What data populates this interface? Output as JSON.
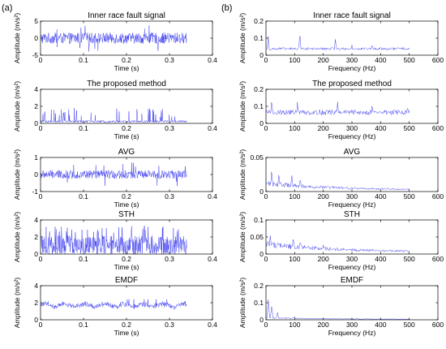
{
  "panel_labels": [
    "(a)",
    "(b)"
  ],
  "colors": {
    "series": "#3333ee",
    "axis": "#000000"
  },
  "chart_data": [
    {
      "type": "line",
      "panel": "a",
      "row": 0,
      "title": "Inner race fault signal",
      "xlabel": "Time (s)",
      "ylabel": "Amplitude (m/s²)",
      "xlim": [
        0,
        0.4
      ],
      "ylim": [
        -5,
        5
      ],
      "xticks": [
        "0",
        "0.1",
        "0.2",
        "0.3",
        "0.4"
      ],
      "yticks": [
        "-5",
        "0",
        "5"
      ],
      "xtick_values": [
        0,
        0.1,
        0.2,
        0.3,
        0.4
      ],
      "ytick_values": [
        -5,
        0,
        5
      ],
      "x_range": [
        0,
        0.34
      ],
      "signal": "bipolar",
      "baseline": 0,
      "spread": 1.6,
      "peak": 4.2,
      "spike_rate": 0.04
    },
    {
      "type": "line",
      "panel": "a",
      "row": 1,
      "title": "The proposed method",
      "xlabel": "Time (s)",
      "ylabel": "Amplitude (m/s²)",
      "xlim": [
        0,
        0.4
      ],
      "ylim": [
        0,
        4
      ],
      "xticks": [
        "0",
        "0.1",
        "0.2",
        "0.3",
        "0.4"
      ],
      "yticks": [
        "0",
        "2",
        "4"
      ],
      "xtick_values": [
        0,
        0.1,
        0.2,
        0.3,
        0.4
      ],
      "ytick_values": [
        0,
        2,
        4
      ],
      "x_range": [
        0,
        0.34
      ],
      "signal": "impulse",
      "baseline": 0.1,
      "spread": 0.25,
      "peak": 1.8,
      "spike_rate": 0.12
    },
    {
      "type": "line",
      "panel": "a",
      "row": 2,
      "title": "AVG",
      "xlabel": "Time (s)",
      "ylabel": "Amplitude (m/s²)",
      "xlim": [
        0,
        0.4
      ],
      "ylim": [
        -1,
        1
      ],
      "xticks": [
        "0",
        "0.1",
        "0.2",
        "0.3",
        "0.4"
      ],
      "yticks": [
        "-1",
        "0",
        "1"
      ],
      "xtick_values": [
        0,
        0.1,
        0.2,
        0.3,
        0.4
      ],
      "ytick_values": [
        -1,
        0,
        1
      ],
      "x_range": [
        0,
        0.34
      ],
      "signal": "bipolar",
      "baseline": 0,
      "spread": 0.25,
      "peak": 0.7,
      "spike_rate": 0.04
    },
    {
      "type": "line",
      "panel": "a",
      "row": 3,
      "title": "STH",
      "xlabel": "Time (s)",
      "ylabel": "Amplitude (m/s²)",
      "xlim": [
        0,
        0.4
      ],
      "ylim": [
        0,
        4
      ],
      "xticks": [
        "0",
        "0.1",
        "0.2",
        "0.3",
        "0.4"
      ],
      "yticks": [
        "0",
        "2",
        "4"
      ],
      "xtick_values": [
        0,
        0.1,
        0.2,
        0.3,
        0.4
      ],
      "ytick_values": [
        0,
        2,
        4
      ],
      "x_range": [
        0,
        0.34
      ],
      "signal": "dense",
      "baseline": 0.9,
      "spread": 0.9,
      "peak": 3.3,
      "spike_rate": 0.08
    },
    {
      "type": "line",
      "panel": "a",
      "row": 4,
      "title": "EMDF",
      "xlabel": "Time (s)",
      "ylabel": "Amplitude (m/s²)",
      "xlim": [
        0,
        0.4
      ],
      "ylim": [
        0,
        4
      ],
      "xticks": [
        "0",
        "0.1",
        "0.2",
        "0.3",
        "0.4"
      ],
      "yticks": [
        "0",
        "2",
        "4"
      ],
      "xtick_values": [
        0,
        0.1,
        0.2,
        0.3,
        0.4
      ],
      "ytick_values": [
        0,
        2,
        4
      ],
      "x_range": [
        0,
        0.34
      ],
      "signal": "smooth",
      "baseline": 1.7,
      "spread": 0.25,
      "peak": 2.4,
      "spike_rate": 0.02
    },
    {
      "type": "line",
      "panel": "b",
      "row": 0,
      "title": "Inner race fault signal",
      "xlabel": "Frequency (Hz)",
      "ylabel": "Amplitude (m/s²)",
      "xlim": [
        0,
        600
      ],
      "ylim": [
        0,
        0.2
      ],
      "xticks": [
        "0",
        "100",
        "200",
        "300",
        "400",
        "500",
        "600"
      ],
      "yticks": [
        "0",
        "0.1",
        "0.2"
      ],
      "xtick_values": [
        0,
        100,
        200,
        300,
        400,
        500,
        600
      ],
      "ytick_values": [
        0,
        0.1,
        0.2
      ],
      "x_range": [
        0,
        500
      ],
      "signal": "spectrum",
      "baseline": 0.03,
      "spread": 0.015,
      "peaks": [
        [
          8,
          0.12
        ],
        [
          118,
          0.15
        ],
        [
          242,
          0.11
        ],
        [
          300,
          0.06
        ],
        [
          370,
          0.07
        ],
        [
          480,
          0.04
        ]
      ]
    },
    {
      "type": "line",
      "panel": "b",
      "row": 1,
      "title": "The proposed method",
      "xlabel": "Frequency (Hz)",
      "ylabel": "Amplitude (m/s²)",
      "xlim": [
        0,
        600
      ],
      "ylim": [
        0,
        0.2
      ],
      "xticks": [
        "0",
        "100",
        "200",
        "300",
        "400",
        "500",
        "600"
      ],
      "yticks": [
        "0",
        "0.1",
        "0.2"
      ],
      "xtick_values": [
        0,
        100,
        200,
        300,
        400,
        500,
        600
      ],
      "ytick_values": [
        0,
        0.1,
        0.2
      ],
      "x_range": [
        0,
        500
      ],
      "signal": "spectrum",
      "baseline": 0.05,
      "spread": 0.03,
      "peaks": [
        [
          20,
          0.16
        ],
        [
          110,
          0.14
        ],
        [
          250,
          0.14
        ],
        [
          370,
          0.13
        ],
        [
          495,
          0.11
        ]
      ]
    },
    {
      "type": "line",
      "panel": "b",
      "row": 2,
      "title": "AVG",
      "xlabel": "Frequency (Hz)",
      "ylabel": "Amplitude (m/s²)",
      "xlim": [
        0,
        600
      ],
      "ylim": [
        0,
        0.05
      ],
      "xticks": [
        "0",
        "100",
        "200",
        "300",
        "400",
        "500",
        "600"
      ],
      "yticks": [
        "0",
        "0.05"
      ],
      "xtick_values": [
        0,
        100,
        200,
        300,
        400,
        500,
        600
      ],
      "ytick_values": [
        0,
        0.05
      ],
      "x_range": [
        0,
        500
      ],
      "signal": "spectrum_decay",
      "baseline": 0.004,
      "spread": 0.004,
      "peaks": [
        [
          20,
          0.035
        ],
        [
          45,
          0.03
        ],
        [
          90,
          0.028
        ],
        [
          120,
          0.02
        ]
      ]
    },
    {
      "type": "line",
      "panel": "b",
      "row": 3,
      "title": "STH",
      "xlabel": "Frequency (Hz)",
      "ylabel": "Amplitude (m/s²)",
      "xlim": [
        0,
        600
      ],
      "ylim": [
        0,
        0.1
      ],
      "xticks": [
        "0",
        "100",
        "200",
        "300",
        "400",
        "500",
        "600"
      ],
      "yticks": [
        "0",
        "0.05",
        "0.1"
      ],
      "xtick_values": [
        0,
        100,
        200,
        300,
        400,
        500,
        600
      ],
      "ytick_values": [
        0,
        0.05,
        0.1
      ],
      "x_range": [
        0,
        500
      ],
      "signal": "spectrum_decay",
      "baseline": 0.01,
      "spread": 0.01,
      "peaks": [
        [
          15,
          0.065
        ],
        [
          95,
          0.055
        ],
        [
          120,
          0.04
        ],
        [
          200,
          0.03
        ]
      ]
    },
    {
      "type": "line",
      "panel": "b",
      "row": 4,
      "title": "EMDF",
      "xlabel": "Frequency (Hz)",
      "ylabel": "Amplitude (m/s²)",
      "xlim": [
        0,
        600
      ],
      "ylim": [
        0,
        0.2
      ],
      "xticks": [
        "0",
        "100",
        "200",
        "300",
        "400",
        "500",
        "600"
      ],
      "yticks": [
        "0",
        "0.1",
        "0.2"
      ],
      "xtick_values": [
        0,
        100,
        200,
        300,
        400,
        500,
        600
      ],
      "ytick_values": [
        0,
        0.1,
        0.2
      ],
      "x_range": [
        0,
        500
      ],
      "signal": "spectrum_decay",
      "baseline": 0.004,
      "spread": 0.004,
      "peaks": [
        [
          8,
          0.14
        ],
        [
          20,
          0.1
        ],
        [
          40,
          0.05
        ],
        [
          100,
          0.02
        ]
      ]
    }
  ]
}
